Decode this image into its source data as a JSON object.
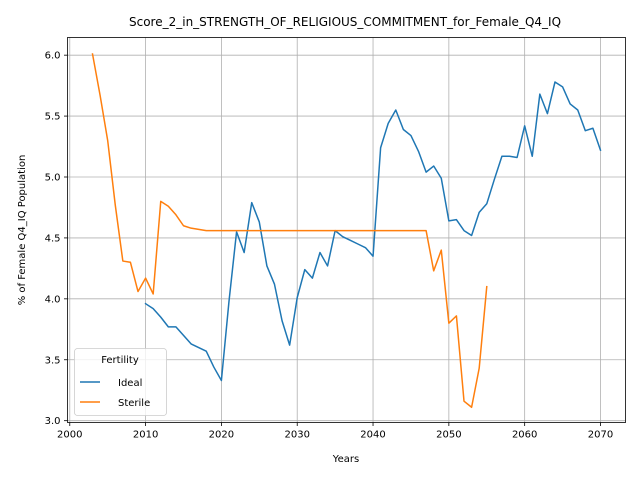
{
  "chart_data": {
    "type": "line",
    "title": "Score_2_in_STRENGTH_OF_RELIGIOUS_COMMITMENT_for_Female_Q4_IQ",
    "xlabel": "Years",
    "ylabel": "% of Female Q4_IQ Population",
    "xlim": [
      1999.7,
      2073.3
    ],
    "ylim": [
      2.985,
      6.145
    ],
    "x_ticks": [
      2000,
      2010,
      2020,
      2030,
      2040,
      2050,
      2060,
      2070
    ],
    "y_ticks": [
      3.0,
      3.5,
      4.0,
      4.5,
      5.0,
      5.5,
      6.0
    ],
    "x_tick_labels": [
      "2000",
      "2010",
      "2020",
      "2030",
      "2040",
      "2050",
      "2060",
      "2070"
    ],
    "y_tick_labels": [
      "3.0",
      "3.5",
      "4.0",
      "4.5",
      "5.0",
      "5.5",
      "6.0"
    ],
    "grid": true,
    "legend": {
      "title": "Fertility",
      "placement": "lower-left"
    },
    "series": [
      {
        "name": "Ideal",
        "color": "#1f77b4",
        "x": [
          2010,
          2011,
          2012,
          2013,
          2014,
          2015,
          2016,
          2017,
          2018,
          2019,
          2020,
          2021,
          2022,
          2023,
          2024,
          2025,
          2026,
          2027,
          2028,
          2029,
          2030,
          2031,
          2032,
          2033,
          2034,
          2035,
          2036,
          2037,
          2038,
          2039,
          2040,
          2041,
          2042,
          2043,
          2044,
          2045,
          2046,
          2047,
          2048,
          2049,
          2050,
          2051,
          2052,
          2053,
          2054,
          2055,
          2056,
          2057,
          2058,
          2059,
          2060,
          2061,
          2062,
          2063,
          2064,
          2065,
          2066,
          2067,
          2068,
          2069,
          2070
        ],
        "values": [
          3.96,
          3.92,
          3.85,
          3.77,
          3.77,
          3.7,
          3.63,
          3.6,
          3.57,
          3.44,
          3.33,
          3.98,
          4.55,
          4.38,
          4.79,
          4.63,
          4.27,
          4.12,
          3.82,
          3.62,
          4.01,
          4.24,
          4.17,
          4.38,
          4.27,
          4.56,
          4.51,
          4.48,
          4.45,
          4.42,
          4.35,
          5.24,
          5.44,
          5.55,
          5.39,
          5.34,
          5.21,
          5.04,
          5.09,
          4.99,
          4.64,
          4.65,
          4.56,
          4.52,
          4.71,
          4.78,
          4.98,
          5.17,
          5.17,
          5.16,
          5.42,
          5.17,
          5.68,
          5.52,
          5.78,
          5.74,
          5.6,
          5.55,
          5.38,
          5.4,
          5.22
        ]
      },
      {
        "name": "Sterile",
        "color": "#ff7f0e",
        "x": [
          2003,
          2004,
          2005,
          2006,
          2007,
          2008,
          2009,
          2010,
          2011,
          2012,
          2013,
          2014,
          2015,
          2016,
          2017,
          2018,
          2019,
          2020,
          2021,
          2022,
          2023,
          2024,
          2025,
          2026,
          2027,
          2028,
          2029,
          2030,
          2031,
          2032,
          2033,
          2034,
          2035,
          2036,
          2037,
          2038,
          2039,
          2040,
          2041,
          2042,
          2043,
          2044,
          2045,
          2046,
          2047,
          2048,
          2049,
          2050,
          2051,
          2052,
          2053,
          2054,
          2055
        ],
        "values": [
          6.01,
          5.67,
          5.3,
          4.77,
          4.31,
          4.3,
          4.06,
          4.17,
          4.04,
          4.8,
          4.76,
          4.69,
          4.6,
          4.58,
          4.57,
          4.56,
          4.56,
          4.56,
          4.56,
          4.56,
          4.56,
          4.56,
          4.56,
          4.56,
          4.56,
          4.56,
          4.56,
          4.56,
          4.56,
          4.56,
          4.56,
          4.56,
          4.56,
          4.56,
          4.56,
          4.56,
          4.56,
          4.56,
          4.56,
          4.56,
          4.56,
          4.56,
          4.56,
          4.56,
          4.56,
          4.23,
          4.4,
          3.8,
          3.86,
          3.16,
          3.11,
          3.43,
          4.1
        ]
      }
    ]
  }
}
